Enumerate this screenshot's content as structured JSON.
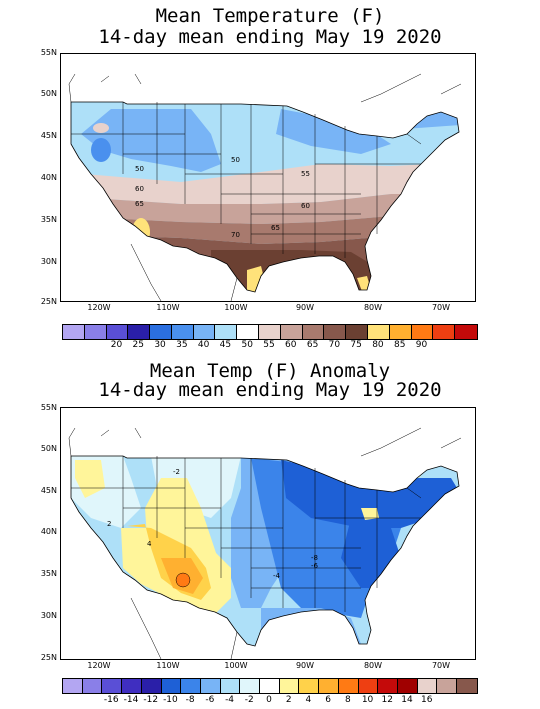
{
  "maps": [
    {
      "title1": "Mean Temperature (F)",
      "title2": "14-day mean ending May 19 2020",
      "lat_labels": [
        "55N",
        "50N",
        "45N",
        "40N",
        "35N",
        "30N",
        "25N"
      ],
      "lon_labels": [
        "120W",
        "110W",
        "100W",
        "90W",
        "80W",
        "70W"
      ],
      "contour_labels": [
        "50",
        "55",
        "60",
        "65",
        "70",
        "50",
        "55",
        "60",
        "65",
        "70"
      ],
      "colorbar_colors": [
        "#b3a6f2",
        "#8a7fe8",
        "#5a4fd6",
        "#2a1fa8",
        "#2b6fe0",
        "#4a90ee",
        "#78b4f6",
        "#aee0f8",
        "#ffffff",
        "#e8d2cc",
        "#c8a39a",
        "#a87a6e",
        "#87584c",
        "#6b4032",
        "#ffe27a",
        "#ffb030",
        "#ff7a14",
        "#ee3f12",
        "#c40a0a"
      ],
      "colorbar_labels": [
        "20",
        "25",
        "30",
        "35",
        "40",
        "45",
        "50",
        "55",
        "60",
        "65",
        "70",
        "75",
        "80",
        "85",
        "90"
      ]
    },
    {
      "title1": "Mean Temp (F) Anomaly",
      "title2": "14-day mean ending May 19 2020",
      "lat_labels": [
        "55N",
        "50N",
        "45N",
        "40N",
        "35N",
        "30N",
        "25N"
      ],
      "lon_labels": [
        "120W",
        "110W",
        "100W",
        "90W",
        "80W",
        "70W"
      ],
      "contour_labels": [
        "-2",
        "2",
        "4",
        "-6",
        "-4",
        "-8"
      ],
      "colorbar_colors": [
        "#b3a6f2",
        "#8a7fe8",
        "#5a4fd6",
        "#3f2ec0",
        "#2a1fa8",
        "#1e60d6",
        "#3b84ea",
        "#78b4f6",
        "#aee0f8",
        "#e0f6fb",
        "#ffffff",
        "#fff59a",
        "#ffd24a",
        "#ffb030",
        "#ff7a14",
        "#ee3f12",
        "#c40a0a",
        "#a00000",
        "#e8d2cc",
        "#c8a39a",
        "#87584c"
      ],
      "colorbar_labels": [
        "-16",
        "-14",
        "-12",
        "-10",
        "-8",
        "-6",
        "-4",
        "-2",
        "0",
        "2",
        "4",
        "6",
        "8",
        "10",
        "12",
        "14",
        "16"
      ]
    }
  ]
}
